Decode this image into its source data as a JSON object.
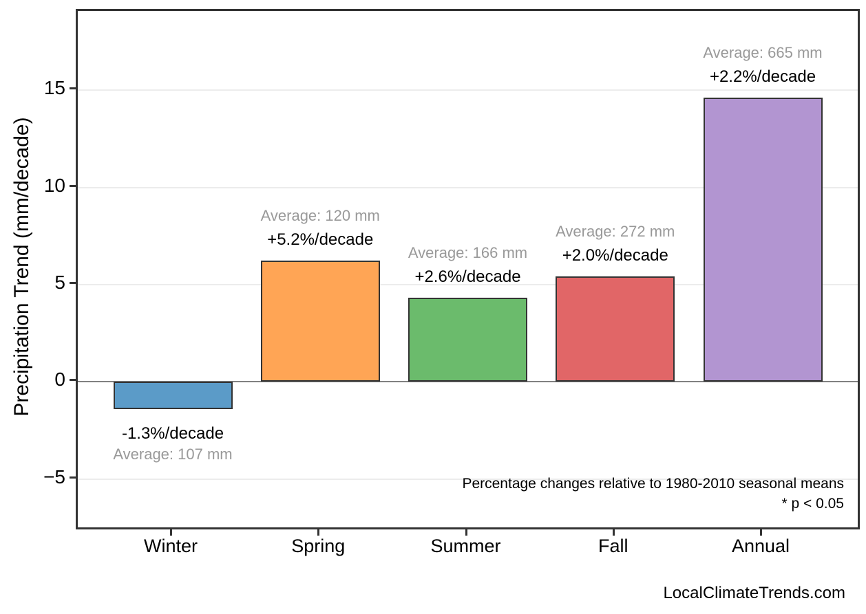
{
  "watermark": "LocalClimateTrends.com",
  "chart_data": {
    "type": "bar",
    "title": "",
    "xlabel": "",
    "ylabel": "Precipitation Trend (mm/decade)",
    "categories": [
      "Winter",
      "Spring",
      "Summer",
      "Fall",
      "Annual"
    ],
    "values": [
      -1.39,
      6.24,
      4.32,
      5.44,
      14.63
    ],
    "percent_per_decade": [
      -1.3,
      5.2,
      2.6,
      2.0,
      2.2
    ],
    "average_mm": [
      107,
      120,
      166,
      272,
      665
    ],
    "bar_colors": [
      "#5B9BC8",
      "#FFA555",
      "#6BBB6C",
      "#E16667",
      "#B295D1"
    ],
    "bar_border_color": "#333333",
    "yticks": [
      15,
      10,
      5,
      0,
      -5
    ],
    "ylim": [
      -7.48,
      19.08
    ],
    "grid": "horizontal",
    "gridline_color": "#ececec",
    "zero_line_color": "#808080",
    "legend": "none",
    "annotations": [
      {
        "category": "Winter",
        "percent_label": "-1.3%/decade",
        "average_label": "Average: 107 mm"
      },
      {
        "category": "Spring",
        "percent_label": "+5.2%/decade",
        "average_label": "Average: 120 mm"
      },
      {
        "category": "Summer",
        "percent_label": "+2.6%/decade",
        "average_label": "Average: 166 mm"
      },
      {
        "category": "Fall",
        "percent_label": "+2.0%/decade",
        "average_label": "Average: 272 mm"
      },
      {
        "category": "Annual",
        "percent_label": "+2.2%/decade",
        "average_label": "Average: 665 mm"
      }
    ],
    "footnote_line1": "Percentage changes relative to 1980-2010 seasonal means",
    "footnote_line2": "* p < 0.05"
  }
}
